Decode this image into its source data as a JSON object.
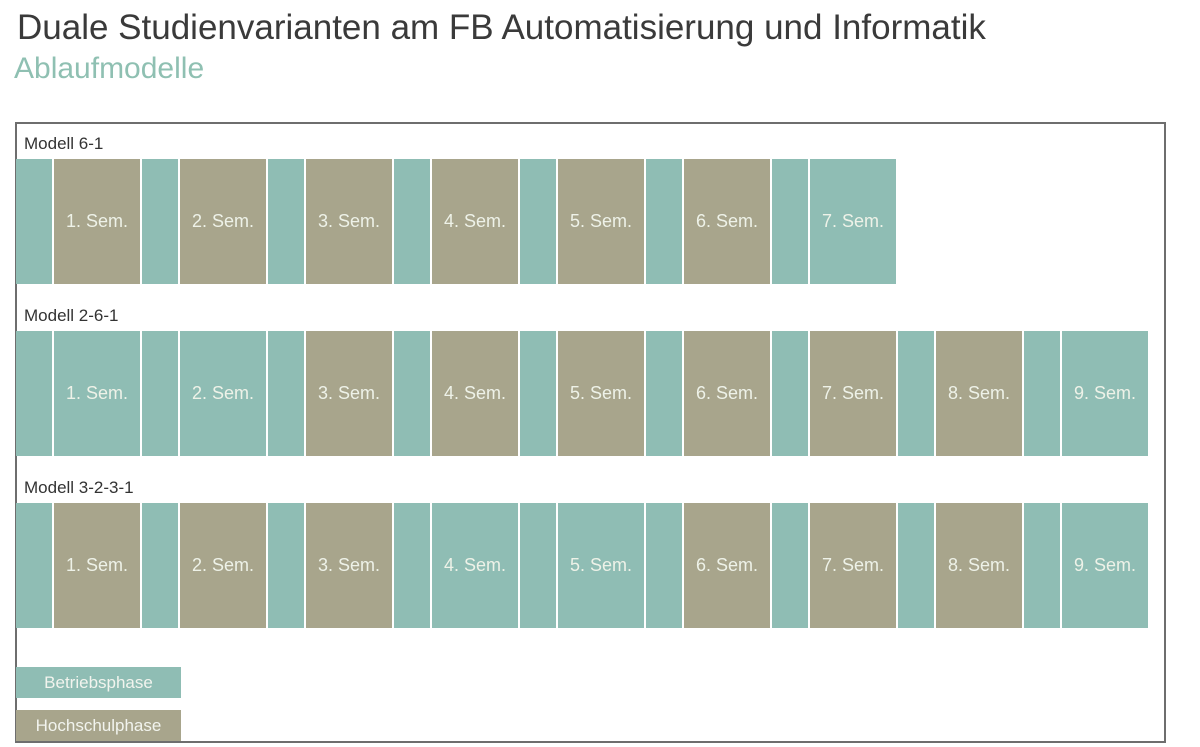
{
  "header": {
    "title": "Duale Studienvarianten am FB Automatisierung und Informatik",
    "subtitle": "Ablaufmodelle"
  },
  "colors": {
    "betriebsphase": "#8fbdb4",
    "hochschulphase": "#a8a58c"
  },
  "models": [
    {
      "label": "Modell 6-1",
      "semesters": [
        {
          "label": "1. Sem.",
          "phase": "hochschulphase"
        },
        {
          "label": "2. Sem.",
          "phase": "hochschulphase"
        },
        {
          "label": "3. Sem.",
          "phase": "hochschulphase"
        },
        {
          "label": "4. Sem.",
          "phase": "hochschulphase"
        },
        {
          "label": "5. Sem.",
          "phase": "hochschulphase"
        },
        {
          "label": "6. Sem.",
          "phase": "hochschulphase"
        },
        {
          "label": "7. Sem.",
          "phase": "betriebsphase"
        }
      ]
    },
    {
      "label": "Modell 2-6-1",
      "semesters": [
        {
          "label": "1. Sem.",
          "phase": "betriebsphase"
        },
        {
          "label": "2. Sem.",
          "phase": "betriebsphase"
        },
        {
          "label": "3. Sem.",
          "phase": "hochschulphase"
        },
        {
          "label": "4. Sem.",
          "phase": "hochschulphase"
        },
        {
          "label": "5. Sem.",
          "phase": "hochschulphase"
        },
        {
          "label": "6. Sem.",
          "phase": "hochschulphase"
        },
        {
          "label": "7. Sem.",
          "phase": "hochschulphase"
        },
        {
          "label": "8. Sem.",
          "phase": "hochschulphase"
        },
        {
          "label": "9. Sem.",
          "phase": "betriebsphase"
        }
      ]
    },
    {
      "label": "Modell 3-2-3-1",
      "semesters": [
        {
          "label": "1. Sem.",
          "phase": "hochschulphase"
        },
        {
          "label": "2. Sem.",
          "phase": "hochschulphase"
        },
        {
          "label": "3. Sem.",
          "phase": "hochschulphase"
        },
        {
          "label": "4. Sem.",
          "phase": "betriebsphase"
        },
        {
          "label": "5. Sem.",
          "phase": "betriebsphase"
        },
        {
          "label": "6. Sem.",
          "phase": "hochschulphase"
        },
        {
          "label": "7. Sem.",
          "phase": "hochschulphase"
        },
        {
          "label": "8. Sem.",
          "phase": "hochschulphase"
        },
        {
          "label": "9. Sem.",
          "phase": "betriebsphase"
        }
      ]
    }
  ],
  "legend": [
    {
      "label": "Betriebsphase",
      "phase": "betriebsphase"
    },
    {
      "label": "Hochschulphase",
      "phase": "hochschulphase"
    }
  ]
}
